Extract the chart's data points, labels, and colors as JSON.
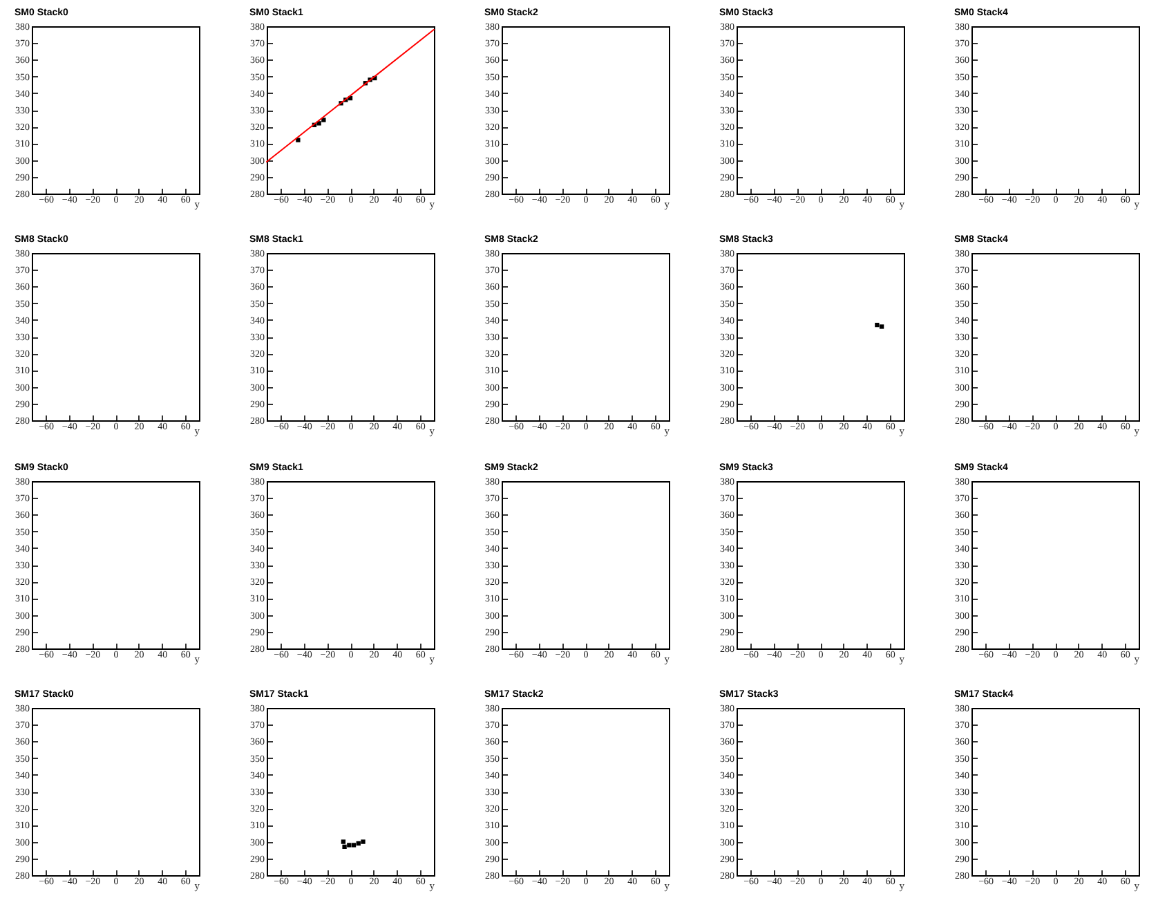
{
  "chart_data": [
    {
      "type": "scatter",
      "title": "SM0 Stack0",
      "xlabel": "y",
      "xlim": [
        -72,
        72
      ],
      "ylim": [
        280,
        380
      ],
      "xticks": [
        -60,
        -40,
        -20,
        0,
        20,
        40,
        60
      ],
      "yticks": [
        280,
        290,
        300,
        310,
        320,
        330,
        340,
        350,
        360,
        370,
        380
      ]
    },
    {
      "type": "scatter",
      "title": "SM0 Stack1",
      "xlabel": "y",
      "xlim": [
        -72,
        72
      ],
      "ylim": [
        280,
        380
      ],
      "xticks": [
        -60,
        -40,
        -20,
        0,
        20,
        40,
        60
      ],
      "yticks": [
        280,
        290,
        300,
        310,
        320,
        330,
        340,
        350,
        360,
        370,
        380
      ],
      "series": [
        {
          "type": "scatter",
          "color": "#000000",
          "marker": "square",
          "x": [
            -45,
            -31,
            -27,
            -23,
            -8,
            -4,
            0,
            13,
            17,
            21
          ],
          "values": [
            312,
            321,
            322,
            324,
            334,
            336,
            337,
            346,
            348,
            349
          ]
        },
        {
          "type": "line",
          "color": "#ff0000",
          "x": [
            -72,
            72
          ],
          "values": [
            299,
            378
          ]
        }
      ]
    },
    {
      "type": "scatter",
      "title": "SM0 Stack2",
      "xlabel": "y",
      "xlim": [
        -72,
        72
      ],
      "ylim": [
        280,
        380
      ],
      "xticks": [
        -60,
        -40,
        -20,
        0,
        20,
        40,
        60
      ],
      "yticks": [
        280,
        290,
        300,
        310,
        320,
        330,
        340,
        350,
        360,
        370,
        380
      ]
    },
    {
      "type": "scatter",
      "title": "SM0 Stack3",
      "xlabel": "y",
      "xlim": [
        -72,
        72
      ],
      "ylim": [
        280,
        380
      ],
      "xticks": [
        -60,
        -40,
        -20,
        0,
        20,
        40,
        60
      ],
      "yticks": [
        280,
        290,
        300,
        310,
        320,
        330,
        340,
        350,
        360,
        370,
        380
      ]
    },
    {
      "type": "scatter",
      "title": "SM0 Stack4",
      "xlabel": "y",
      "xlim": [
        -72,
        72
      ],
      "ylim": [
        280,
        380
      ],
      "xticks": [
        -60,
        -40,
        -20,
        0,
        20,
        40,
        60
      ],
      "yticks": [
        280,
        290,
        300,
        310,
        320,
        330,
        340,
        350,
        360,
        370,
        380
      ]
    },
    {
      "type": "scatter",
      "title": "SM8 Stack0",
      "xlabel": "y",
      "xlim": [
        -72,
        72
      ],
      "ylim": [
        280,
        380
      ],
      "xticks": [
        -60,
        -40,
        -20,
        0,
        20,
        40,
        60
      ],
      "yticks": [
        280,
        290,
        300,
        310,
        320,
        330,
        340,
        350,
        360,
        370,
        380
      ]
    },
    {
      "type": "scatter",
      "title": "SM8 Stack1",
      "xlabel": "y",
      "xlim": [
        -72,
        72
      ],
      "ylim": [
        280,
        380
      ],
      "xticks": [
        -60,
        -40,
        -20,
        0,
        20,
        40,
        60
      ],
      "yticks": [
        280,
        290,
        300,
        310,
        320,
        330,
        340,
        350,
        360,
        370,
        380
      ]
    },
    {
      "type": "scatter",
      "title": "SM8 Stack2",
      "xlabel": "y",
      "xlim": [
        -72,
        72
      ],
      "ylim": [
        280,
        380
      ],
      "xticks": [
        -60,
        -40,
        -20,
        0,
        20,
        40,
        60
      ],
      "yticks": [
        280,
        290,
        300,
        310,
        320,
        330,
        340,
        350,
        360,
        370,
        380
      ]
    },
    {
      "type": "scatter",
      "title": "SM8 Stack3",
      "xlabel": "y",
      "xlim": [
        -72,
        72
      ],
      "ylim": [
        280,
        380
      ],
      "xticks": [
        -60,
        -40,
        -20,
        0,
        20,
        40,
        60
      ],
      "yticks": [
        280,
        290,
        300,
        310,
        320,
        330,
        340,
        350,
        360,
        370,
        380
      ],
      "marker": "square",
      "color": "#000000",
      "x": [
        49,
        53
      ],
      "values": [
        337,
        336
      ]
    },
    {
      "type": "scatter",
      "title": "SM8 Stack4",
      "xlabel": "y",
      "xlim": [
        -72,
        72
      ],
      "ylim": [
        280,
        380
      ],
      "xticks": [
        -60,
        -40,
        -20,
        0,
        20,
        40,
        60
      ],
      "yticks": [
        280,
        290,
        300,
        310,
        320,
        330,
        340,
        350,
        360,
        370,
        380
      ]
    },
    {
      "type": "scatter",
      "title": "SM9 Stack0",
      "xlabel": "y",
      "xlim": [
        -72,
        72
      ],
      "ylim": [
        280,
        380
      ],
      "xticks": [
        -60,
        -40,
        -20,
        0,
        20,
        40,
        60
      ],
      "yticks": [
        280,
        290,
        300,
        310,
        320,
        330,
        340,
        350,
        360,
        370,
        380
      ]
    },
    {
      "type": "scatter",
      "title": "SM9 Stack1",
      "xlabel": "y",
      "xlim": [
        -72,
        72
      ],
      "ylim": [
        280,
        380
      ],
      "xticks": [
        -60,
        -40,
        -20,
        0,
        20,
        40,
        60
      ],
      "yticks": [
        280,
        290,
        300,
        310,
        320,
        330,
        340,
        350,
        360,
        370,
        380
      ]
    },
    {
      "type": "scatter",
      "title": "SM9 Stack2",
      "xlabel": "y",
      "xlim": [
        -72,
        72
      ],
      "ylim": [
        280,
        380
      ],
      "xticks": [
        -60,
        -40,
        -20,
        0,
        20,
        40,
        60
      ],
      "yticks": [
        280,
        290,
        300,
        310,
        320,
        330,
        340,
        350,
        360,
        370,
        380
      ]
    },
    {
      "type": "scatter",
      "title": "SM9 Stack3",
      "xlabel": "y",
      "xlim": [
        -72,
        72
      ],
      "ylim": [
        280,
        380
      ],
      "xticks": [
        -60,
        -40,
        -20,
        0,
        20,
        40,
        60
      ],
      "yticks": [
        280,
        290,
        300,
        310,
        320,
        330,
        340,
        350,
        360,
        370,
        380
      ]
    },
    {
      "type": "scatter",
      "title": "SM9 Stack4",
      "xlabel": "y",
      "xlim": [
        -72,
        72
      ],
      "ylim": [
        280,
        380
      ],
      "xticks": [
        -60,
        -40,
        -20,
        0,
        20,
        40,
        60
      ],
      "yticks": [
        280,
        290,
        300,
        310,
        320,
        330,
        340,
        350,
        360,
        370,
        380
      ]
    },
    {
      "type": "scatter",
      "title": "SM17 Stack0",
      "xlabel": "y",
      "xlim": [
        -72,
        72
      ],
      "ylim": [
        280,
        380
      ],
      "xticks": [
        -60,
        -40,
        -20,
        0,
        20,
        40,
        60
      ],
      "yticks": [
        280,
        290,
        300,
        310,
        320,
        330,
        340,
        350,
        360,
        370,
        380
      ]
    },
    {
      "type": "scatter",
      "title": "SM17 Stack1",
      "xlabel": "y",
      "xlim": [
        -72,
        72
      ],
      "ylim": [
        280,
        380
      ],
      "xticks": [
        -60,
        -40,
        -20,
        0,
        20,
        40,
        60
      ],
      "yticks": [
        280,
        290,
        300,
        310,
        320,
        330,
        340,
        350,
        360,
        370,
        380
      ],
      "marker": "square",
      "color": "#000000",
      "x": [
        -6,
        -5,
        -1,
        3,
        7,
        11
      ],
      "values": [
        300,
        297,
        298,
        298,
        299,
        300
      ]
    },
    {
      "type": "scatter",
      "title": "SM17 Stack2",
      "xlabel": "y",
      "xlim": [
        -72,
        72
      ],
      "ylim": [
        280,
        380
      ],
      "xticks": [
        -60,
        -40,
        -20,
        0,
        20,
        40,
        60
      ],
      "yticks": [
        280,
        290,
        300,
        310,
        320,
        330,
        340,
        350,
        360,
        370,
        380
      ]
    },
    {
      "type": "scatter",
      "title": "SM17 Stack3",
      "xlabel": "y",
      "xlim": [
        -72,
        72
      ],
      "ylim": [
        280,
        380
      ],
      "xticks": [
        -60,
        -40,
        -20,
        0,
        20,
        40,
        60
      ],
      "yticks": [
        280,
        290,
        300,
        310,
        320,
        330,
        340,
        350,
        360,
        370,
        380
      ]
    },
    {
      "type": "scatter",
      "title": "SM17 Stack4",
      "xlabel": "y",
      "xlim": [
        -72,
        72
      ],
      "ylim": [
        280,
        380
      ],
      "xticks": [
        -60,
        -40,
        -20,
        0,
        20,
        40,
        60
      ],
      "yticks": [
        280,
        290,
        300,
        310,
        320,
        330,
        340,
        350,
        360,
        370,
        380
      ]
    }
  ]
}
